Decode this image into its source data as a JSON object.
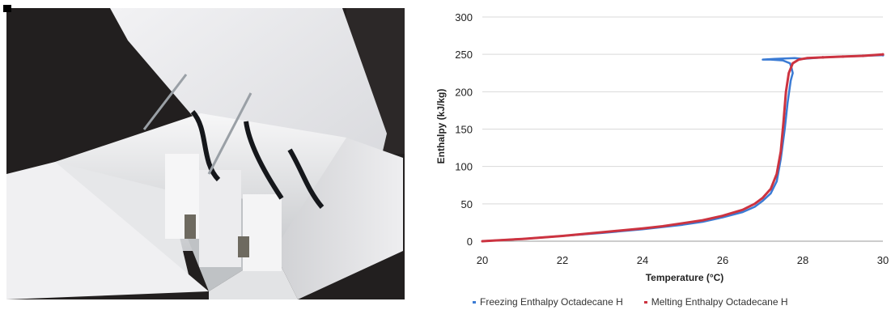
{
  "photo": {
    "description_icon": "insulated-foam-box-icon"
  },
  "chart_data": {
    "type": "line",
    "title": "",
    "xlabel": "Temperature (°C)",
    "ylabel": "Enthalpy (kJ/kg)",
    "xlim": [
      20,
      30
    ],
    "ylim": [
      0,
      300
    ],
    "xticks": [
      20,
      22,
      24,
      26,
      28,
      30
    ],
    "yticks": [
      0,
      50,
      100,
      150,
      200,
      250,
      300
    ],
    "xtick_labels": [
      "20",
      "22",
      "24",
      "26",
      "28",
      "30"
    ],
    "ytick_labels": [
      "0",
      "50",
      "100",
      "150",
      "200",
      "250",
      "300"
    ],
    "grid": "horizontal",
    "legend_position": "bottom",
    "series": [
      {
        "name": "Freezing Enthalpy Octadecane H",
        "color": "#3b7bd4",
        "points": [
          [
            20,
            0
          ],
          [
            21,
            3
          ],
          [
            22,
            7
          ],
          [
            23,
            11
          ],
          [
            24,
            16
          ],
          [
            24.5,
            19
          ],
          [
            25,
            22
          ],
          [
            25.5,
            26
          ],
          [
            26,
            32
          ],
          [
            26.5,
            39
          ],
          [
            26.8,
            46
          ],
          [
            27.0,
            54
          ],
          [
            27.2,
            64
          ],
          [
            27.35,
            80
          ],
          [
            27.45,
            110
          ],
          [
            27.55,
            150
          ],
          [
            27.62,
            185
          ],
          [
            27.7,
            215
          ],
          [
            27.75,
            225
          ],
          [
            27.72,
            232
          ],
          [
            27.68,
            238
          ],
          [
            27.5,
            242
          ],
          [
            27.2,
            243
          ],
          [
            27.0,
            243
          ],
          [
            27.3,
            244
          ],
          [
            27.8,
            245
          ],
          [
            28.0,
            244
          ],
          [
            28.5,
            246
          ],
          [
            29.0,
            247
          ],
          [
            29.5,
            248
          ],
          [
            30,
            249
          ]
        ]
      },
      {
        "name": "Melting Enthalpy Octadecane H",
        "color": "#cc3340",
        "points": [
          [
            20,
            0
          ],
          [
            21,
            3
          ],
          [
            22,
            7
          ],
          [
            23,
            12
          ],
          [
            24,
            17
          ],
          [
            24.5,
            20
          ],
          [
            25,
            24
          ],
          [
            25.5,
            28
          ],
          [
            26,
            34
          ],
          [
            26.5,
            42
          ],
          [
            26.8,
            50
          ],
          [
            27.0,
            58
          ],
          [
            27.2,
            70
          ],
          [
            27.35,
            90
          ],
          [
            27.45,
            120
          ],
          [
            27.52,
            160
          ],
          [
            27.58,
            200
          ],
          [
            27.65,
            225
          ],
          [
            27.75,
            238
          ],
          [
            27.9,
            243
          ],
          [
            28.1,
            245
          ],
          [
            28.5,
            246
          ],
          [
            29.0,
            247
          ],
          [
            29.5,
            248
          ],
          [
            30,
            250
          ]
        ]
      }
    ]
  }
}
